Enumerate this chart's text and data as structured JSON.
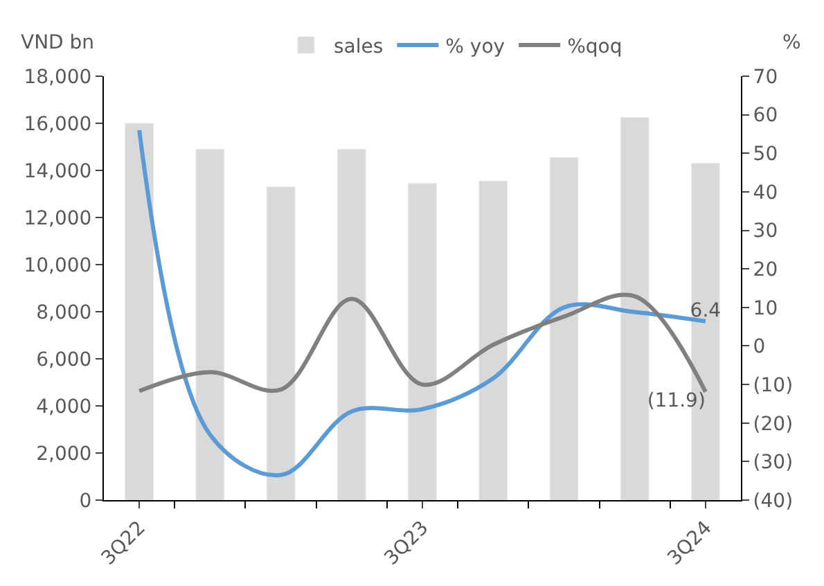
{
  "chart_data": {
    "type": "bar",
    "ylabel": "VND bn",
    "y2label": "%",
    "categories": [
      "3Q22",
      null,
      null,
      null,
      "3Q23",
      null,
      null,
      null,
      "3Q24"
    ],
    "series": [
      {
        "name": "sales",
        "color": "#d9d9d9",
        "values": [
          16000,
          14900,
          13300,
          14900,
          13450,
          13550,
          14550,
          16250,
          14300
        ]
      },
      {
        "name": "% yoy",
        "type": "line",
        "axis": "y2",
        "color": "#5b9bd5",
        "values": [
          56,
          -23,
          -33.5,
          -17,
          -16.4,
          -8.4,
          10,
          8.8,
          6.4
        ],
        "value_labels": [
          null,
          null,
          null,
          null,
          null,
          null,
          null,
          null,
          "6.4"
        ]
      },
      {
        "name": "%qoq",
        "type": "line",
        "axis": "y2",
        "color": "#808080",
        "values": [
          -11.7,
          -6.8,
          -11.3,
          12.2,
          -10,
          0.3,
          7.6,
          12.9,
          -11.9
        ],
        "value_labels": [
          null,
          null,
          null,
          null,
          null,
          null,
          null,
          null,
          "(11.9)"
        ]
      }
    ],
    "ylim": [
      0,
      18000
    ],
    "yticks": [
      {
        "value": 0,
        "label": "0"
      },
      {
        "value": 2000,
        "label": "2,000"
      },
      {
        "value": 4000,
        "label": "4,000"
      },
      {
        "value": 6000,
        "label": "6,000"
      },
      {
        "value": 8000,
        "label": "8,000"
      },
      {
        "value": 10000,
        "label": "10,000"
      },
      {
        "value": 12000,
        "label": "12,000"
      },
      {
        "value": 14000,
        "label": "14,000"
      },
      {
        "value": 16000,
        "label": "16,000"
      },
      {
        "value": 18000,
        "label": "18,000"
      }
    ],
    "y2lim": [
      -40,
      70
    ],
    "y2ticks": [
      {
        "value": -40,
        "label": "(40)"
      },
      {
        "value": -30,
        "label": "(30)"
      },
      {
        "value": -20,
        "label": "(20)"
      },
      {
        "value": -10,
        "label": "(10)"
      },
      0,
      10,
      20,
      30,
      40,
      50,
      60,
      70
    ],
    "legend": "top",
    "marker": "none",
    "line_style": "solid"
  }
}
